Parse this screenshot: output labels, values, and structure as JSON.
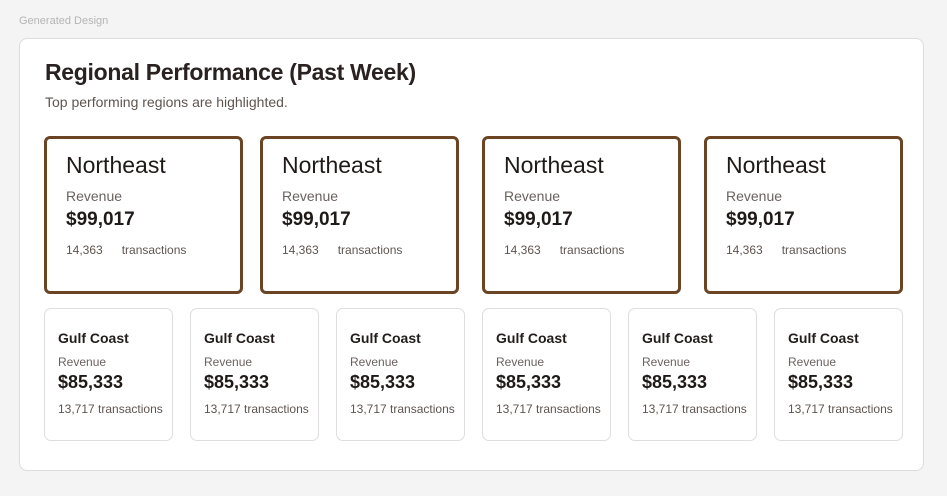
{
  "label": "Generated Design",
  "header": {
    "title": "Regional Performance (Past Week)",
    "subtitle": "Top performing regions are highlighted."
  },
  "accent_color": "#6b4423",
  "top_regions": [
    {
      "name": "Northeast",
      "revenue_label": "Revenue",
      "revenue": "$99,017",
      "transactions": "14,363",
      "transactions_label": "transactions"
    },
    {
      "name": "Northeast",
      "revenue_label": "Revenue",
      "revenue": "$99,017",
      "transactions": "14,363",
      "transactions_label": "transactions"
    },
    {
      "name": "Northeast",
      "revenue_label": "Revenue",
      "revenue": "$99,017",
      "transactions": "14,363",
      "transactions_label": "transactions"
    },
    {
      "name": "Northeast",
      "revenue_label": "Revenue",
      "revenue": "$99,017",
      "transactions": "14,363",
      "transactions_label": "transactions"
    }
  ],
  "other_regions": [
    {
      "name": "Gulf Coast",
      "revenue_label": "Revenue",
      "revenue": "$85,333",
      "transactions": "13,717 transactions"
    },
    {
      "name": "Gulf Coast",
      "revenue_label": "Revenue",
      "revenue": "$85,333",
      "transactions": "13,717 transactions"
    },
    {
      "name": "Gulf Coast",
      "revenue_label": "Revenue",
      "revenue": "$85,333",
      "transactions": "13,717 transactions"
    },
    {
      "name": "Gulf Coast",
      "revenue_label": "Revenue",
      "revenue": "$85,333",
      "transactions": "13,717 transactions"
    },
    {
      "name": "Gulf Coast",
      "revenue_label": "Revenue",
      "revenue": "$85,333",
      "transactions": "13,717 transactions"
    },
    {
      "name": "Gulf Coast",
      "revenue_label": "Revenue",
      "revenue": "$85,333",
      "transactions": "13,717 transactions"
    }
  ]
}
